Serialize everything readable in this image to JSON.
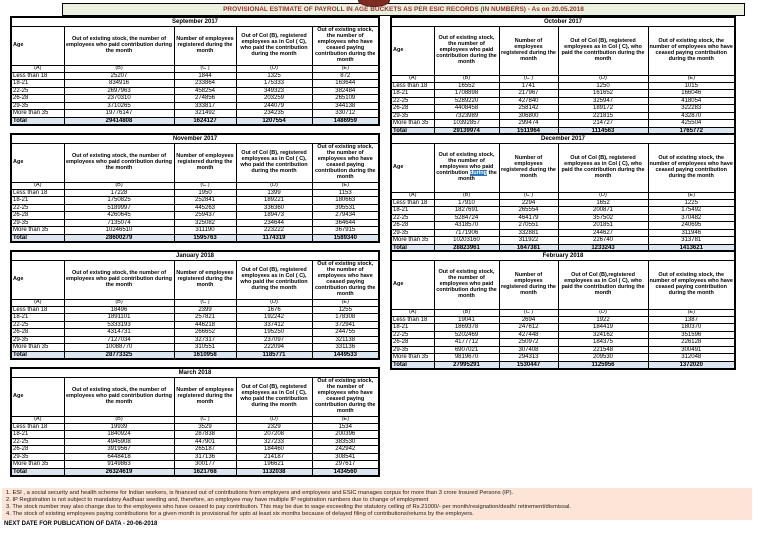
{
  "page": {
    "title": "PROVISIONAL ESTIMATE OF PAYROLL IN AGE BUCKETS AS PER ESIC RECORDS (IN NUMBERS) - As on 20.05.2018",
    "next_date_line": "NEXT DATE FOR PUBLICATION OF DATA - 20-06-2018"
  },
  "colors": {
    "title_bg": "#EBF1DE",
    "title_text": "#963634",
    "total_row_bg": "#DCE6F1",
    "footnote_bg": "#FCE4D6",
    "selection_highlight": "#2E75B6",
    "logo_color": "#7E2B22"
  },
  "column_letters": [
    "(A)",
    "(B)",
    "(C )",
    "(D)",
    "(E)"
  ],
  "age_groups": [
    "Less than 18",
    "18-21",
    "22-25",
    "26-28",
    "29-35",
    "More than 35"
  ],
  "total_label": "Total",
  "tables": [
    {
      "month": "September 2017",
      "layout": "left",
      "headers": [
        "Age",
        "Out of existing stock, the number of employees who paid contribution during the month",
        "Number of employees registered during the month",
        "Out of Col (B), registered employees as in Col ( C), who paid the contribution during the month",
        "Out of existing stock, the number of employees who have ceased paying contribution during the month"
      ],
      "rows": [
        [
          25207,
          1844,
          1325,
          872
        ],
        [
          834916,
          233864,
          175333,
          163644
        ],
        [
          2697963,
          458254,
          349323,
          382484
        ],
        [
          2370310,
          274856,
          203259,
          265109
        ],
        [
          3710265,
          333817,
          244079,
          344138
        ],
        [
          19776147,
          321492,
          234235,
          330712
        ]
      ],
      "total": [
        29414808,
        1624127,
        1207554,
        1486959
      ]
    },
    {
      "month": "October 2017",
      "layout": "right",
      "headers": [
        "Age",
        "Out of existing stock, the number of employees who paid contribution during the month",
        "Number of employees registered during the month",
        "Out of Col (B), registered employees as in Col ( C), who paid the contribution during the month",
        "Out of existing stock, the number of employees who have ceased paying contribution during the month"
      ],
      "rows": [
        [
          16552,
          1741,
          1250,
          1015
        ],
        [
          1708898,
          217967,
          161652,
          166046
        ],
        [
          5289220,
          427840,
          325947,
          418054
        ],
        [
          4408458,
          258142,
          189172,
          322283
        ],
        [
          7323989,
          306800,
          221815,
          432870
        ],
        [
          10392857,
          299474,
          214727,
          425504
        ]
      ],
      "total": [
        29139974,
        1511964,
        1114563,
        1765772
      ]
    },
    {
      "month": "November 2017",
      "layout": "left",
      "headers": [
        "Age",
        "Out of existing stock, the number of employees who paid contribution during the month",
        "Number of employees registered during the month",
        "Out of Col (B), registered employees as in Col ( C), who paid the contribution during the month",
        "Out of existing stock, the number of employees who have ceased paying contribution during the month"
      ],
      "rows": [
        [
          17228,
          1950,
          1399,
          1153
        ],
        [
          1750825,
          252841,
          189221,
          180663
        ],
        [
          5189997,
          445263,
          336360,
          395531
        ],
        [
          4260645,
          259437,
          189473,
          279434
        ],
        [
          7135074,
          325082,
          234644,
          364644
        ],
        [
          10246510,
          311190,
          223222,
          367915
        ]
      ],
      "total": [
        28600279,
        1595763,
        1174319,
        1589340
      ]
    },
    {
      "month": "December 2017",
      "layout": "right",
      "highlight": "during",
      "headers": [
        "Age",
        "Out of existing stock, the number of employees who paid contribution during the month",
        "Number of employees registered during the month",
        "Out of Col (B), registered employees as in Col ( C), who paid the contribution during the month",
        "Out of existing stock, the number of employees who have ceased paying contribution during the month"
      ],
      "rows": [
        [
          17910,
          2294,
          1652,
          1225
        ],
        [
          1827691,
          265554,
          200871,
          175492
        ],
        [
          5284724,
          464179,
          357502,
          370482
        ],
        [
          4318570,
          270551,
          201851,
          240695
        ],
        [
          7171906,
          332881,
          244627,
          311946
        ],
        [
          10203160,
          311922,
          226740,
          313781
        ]
      ],
      "total": [
        28823961,
        1647381,
        1233243,
        1413621
      ]
    },
    {
      "month": "January 2018",
      "layout": "left",
      "headers": [
        "Age",
        "Out of existing stock, the number of employees who paid contribution during the month",
        "Number of employees registered during the month",
        "Out of Col (B), registered employees as in Col ( C), who paid the contribution during the month",
        "Out of existing stock, the number of employees who have ceased paying contribution during the month"
      ],
      "rows": [
        [
          18496,
          2399,
          1676,
          1255
        ],
        [
          1891101,
          257821,
          192242,
          178308
        ],
        [
          5333193,
          446218,
          337412,
          372941
        ],
        [
          4314731,
          266652,
          195250,
          244755
        ],
        [
          7127034,
          327317,
          237097,
          321138
        ],
        [
          10088770,
          310551,
          222094,
          331136
        ]
      ],
      "total": [
        28773325,
        1610958,
        1185771,
        1449533
      ]
    },
    {
      "month": "February 2018",
      "layout": "right",
      "headers": [
        "Age",
        "Out of existing stock, the number of employees who paid contribution during the month",
        "Number of employees registered during the month",
        "Out of Col (B),registered employees as in Col ( C), who paid the contribution during the month",
        "Out of existing stock, the number of employees who have ceased paying contribution during the month"
      ],
      "rows": [
        [
          19041,
          2694,
          1922,
          1387
        ],
        [
          1869378,
          247612,
          184419,
          180370
        ],
        [
          5202469,
          427448,
          324162,
          351596
        ],
        [
          4177712,
          250972,
          184375,
          226128
        ],
        [
          6907021,
          307408,
          221548,
          300491
        ],
        [
          9819670,
          294313,
          209530,
          312048
        ]
      ],
      "total": [
        27995291,
        1530447,
        1125956,
        1372020
      ]
    },
    {
      "month": "March 2018",
      "layout": "left",
      "headers": [
        "Age",
        "Out of existing stock, the number of employees who paid contribution during the month",
        "Number of employees registered during the month",
        "Out of Col (B), registered employees as in Col ( C), who paid the contribution during the month",
        "Out of existing stock, the number of employees who have ceased paying contribution during the month"
      ],
      "rows": [
        [
          19939,
          3529,
          2329,
          1534
        ],
        [
          1840924,
          287838,
          207208,
          200396
        ],
        [
          4945908,
          447901,
          327233,
          383530
        ],
        [
          3919567,
          265187,
          184460,
          242942
        ],
        [
          6448418,
          317136,
          214187,
          308541
        ],
        [
          9149863,
          300177,
          196621,
          297617
        ]
      ],
      "total": [
        26324619,
        1621768,
        1132038,
        1434560
      ]
    }
  ],
  "footnotes": [
    "1. ESI , a social security and health scheme for Indian workers, is financed out of contributions from employers and employees and ESIC manages corpus for more than 3 crore Insured Persons (IP).",
    "2. IP Registration is not subject to mandatory Aadhaar seeding and, therefore, an employee may have multiple IP registration numbers due to change of employment",
    "3. The stock number may also change due to the employees who have ceased to pay contribution. This may  be due to wage exceeding the statutory ceiling of  Rs.21000/- per month/resignation/death/ retirement/dismissal.",
    "4. The stock of existing employees paying contributions for a given month is provisional for upto at least six months because of delayed filing of contributions/returns by the employers."
  ]
}
